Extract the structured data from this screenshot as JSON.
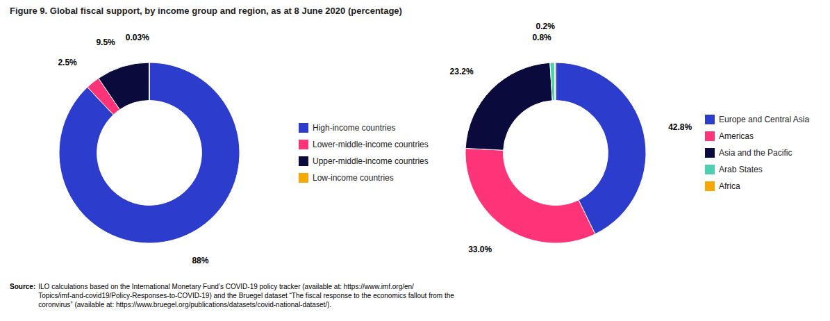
{
  "chart_data": [
    {
      "type": "donut",
      "title": "Figure 9. Global fiscal support, by income group and region, as at 8 June 2020 (percentage)",
      "categories": [
        "High-income countries",
        "Lower-middle-income countries",
        "Upper-middle-income countries",
        "Low-income countries"
      ],
      "values": [
        88.0,
        2.5,
        9.5,
        0.03
      ],
      "value_labels": [
        "88%",
        "2.5%",
        "9.5%",
        "0.03%"
      ],
      "colors": [
        "#2c3ccc",
        "#ff3377",
        "#0a0a3d",
        "#f5a800"
      ],
      "data_labels": true,
      "legend": "right",
      "annotations": [
        "Source:",
        "ILO calculations based on the International Monetary Fund’s COVID-19 policy tracker (available at: https://www.imf.org/en/",
        "Topics/imf-and-covid19/Policy-Responses-to-COVID-19) and the Bruegel dataset “The fiscal response to the economics fallout from the",
        "coronvirus” (available at: https://www.bruegel.org/publications/datasets/covid-national-dataset/)."
      ]
    },
    {
      "type": "donut",
      "categories": [
        "Europe and Central Asia",
        "Americas",
        "Asia and the Pacific",
        "Arab States",
        "Africa"
      ],
      "values": [
        42.8,
        33.0,
        23.2,
        0.8,
        0.2
      ],
      "value_labels": [
        "42.8%",
        "33.0%",
        "23.2%",
        "0.8%",
        "0.2%"
      ],
      "colors": [
        "#2c3ccc",
        "#ff3377",
        "#0a0a3d",
        "#4dcfb0",
        "#f5a800"
      ],
      "data_labels": true,
      "legend": "right"
    }
  ]
}
